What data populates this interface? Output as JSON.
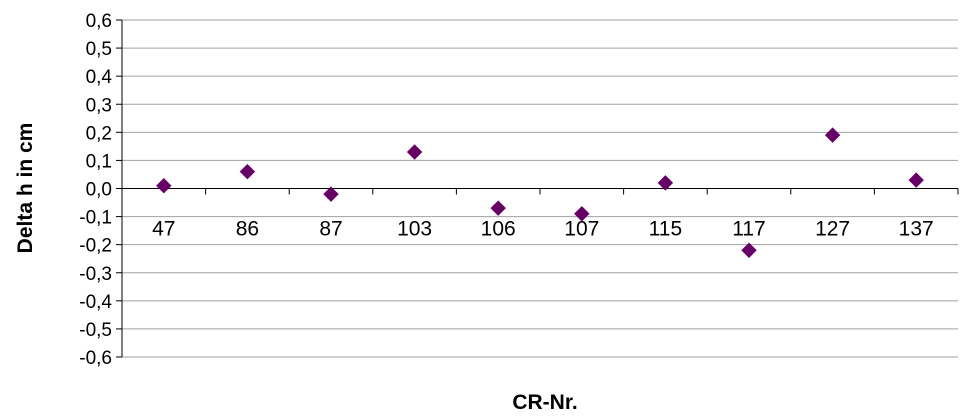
{
  "chart_data": {
    "type": "scatter",
    "title": "",
    "xlabel": "CR-Nr.",
    "ylabel": "Delta h in cm",
    "categories": [
      "47",
      "86",
      "87",
      "103",
      "106",
      "107",
      "115",
      "117",
      "127",
      "137"
    ],
    "series": [
      {
        "values": [
          0.01,
          0.06,
          -0.02,
          0.13,
          -0.07,
          -0.09,
          0.02,
          -0.22,
          0.19,
          0.03
        ]
      }
    ],
    "ylim": [
      -0.6,
      0.6
    ],
    "y_step": 0.1,
    "y_tick_labels": [
      "0,6",
      "0,5",
      "0,4",
      "0,3",
      "0,2",
      "0,1",
      "0,0",
      "-0,1",
      "-0,2",
      "-0,3",
      "-0,4",
      "-0,5",
      "-0,6"
    ],
    "grid": true,
    "legend": "none",
    "marker": "diamond",
    "colors": {
      "marker": "#660066",
      "grid": "#a0a0a0",
      "axis": "#000000"
    }
  }
}
